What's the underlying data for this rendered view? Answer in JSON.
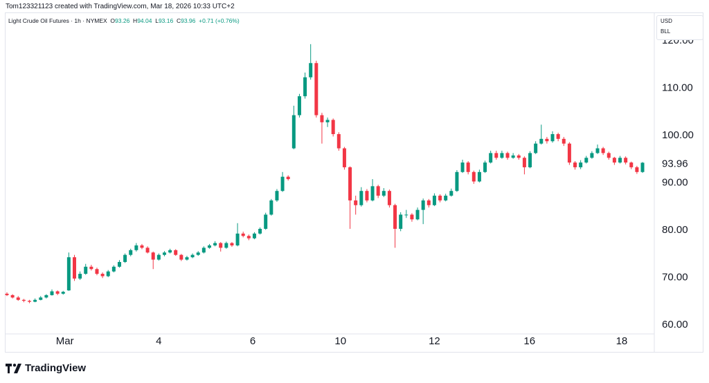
{
  "header": {
    "credit": "Tom123321123 created with TradingView.com, Mar 18, 2026 10:33 UTC+2"
  },
  "legend": {
    "symbol": "Light Crude Oil Futures · 1h · NYMEX",
    "o_label": "O",
    "o": "93.26",
    "h_label": "H",
    "h": "94.04",
    "l_label": "L",
    "l": "93.16",
    "c_label": "C",
    "c": "93.96",
    "change": "+0.71 (+0.76%)"
  },
  "unit_menu": {
    "currency": "USD",
    "unit": "BLL"
  },
  "logo": {
    "text": "TradingView"
  },
  "colors": {
    "up": "#089981",
    "down": "#f23645",
    "last_price_bg": "#089981"
  },
  "chart_data": {
    "type": "candlestick",
    "title": "Light Crude Oil Futures · 1h · NYMEX",
    "ylim": [
      57,
      122
    ],
    "y_ticks": [
      "60.00",
      "70.00",
      "80.00",
      "90.00",
      "100.00",
      "110.00",
      "120.00"
    ],
    "x_ticks": [
      {
        "label": "Mar",
        "index": 10.3
      },
      {
        "label": "4",
        "index": 27
      },
      {
        "label": "6",
        "index": 43.7
      },
      {
        "label": "10",
        "index": 59.3
      },
      {
        "label": "12",
        "index": 76
      },
      {
        "label": "16",
        "index": 92.9
      },
      {
        "label": "18",
        "index": 109.3
      }
    ],
    "last_price": "93.96",
    "grid": false,
    "candles": [
      [
        66.3,
        66.6,
        65.8,
        66
      ],
      [
        66,
        66.2,
        65.3,
        65.5
      ],
      [
        65.5,
        65.8,
        64.8,
        65
      ],
      [
        65,
        65.2,
        64.5,
        64.8
      ],
      [
        64.8,
        65,
        64.3,
        64.6
      ],
      [
        64.6,
        65.3,
        64.5,
        65
      ],
      [
        65,
        65.8,
        64.9,
        65.5
      ],
      [
        65.5,
        66.2,
        65.3,
        66
      ],
      [
        66,
        67.2,
        65.9,
        66.8
      ],
      [
        66.8,
        67,
        66,
        66.3
      ],
      [
        66.3,
        66.9,
        66.1,
        66.7
      ],
      [
        67,
        75,
        66.9,
        74
      ],
      [
        74,
        74.5,
        69,
        69.5
      ],
      [
        69.5,
        71,
        69.2,
        70.5
      ],
      [
        70.5,
        72.6,
        70.3,
        72
      ],
      [
        72,
        72.4,
        71.2,
        71.5
      ],
      [
        71.5,
        71.8,
        70.2,
        70.5
      ],
      [
        70.5,
        70.8,
        69.6,
        70
      ],
      [
        70,
        71.3,
        69.8,
        71
      ],
      [
        71,
        72.3,
        70.8,
        72
      ],
      [
        72,
        73.4,
        71.8,
        73
      ],
      [
        73,
        74.8,
        72.8,
        74.5
      ],
      [
        74.5,
        75.8,
        74.2,
        75.5
      ],
      [
        75.5,
        77,
        75.2,
        76.5
      ],
      [
        76.5,
        76.8,
        75.7,
        76
      ],
      [
        76,
        76.3,
        74.8,
        75
      ],
      [
        75,
        75.2,
        71.5,
        73.5
      ],
      [
        73.5,
        74.8,
        73.3,
        74.5
      ],
      [
        74.5,
        75.3,
        74.2,
        75
      ],
      [
        75,
        75.8,
        74.8,
        75.5
      ],
      [
        75.5,
        75.7,
        74.3,
        74.5
      ],
      [
        74.5,
        74.7,
        73.2,
        73.5
      ],
      [
        73.5,
        74.3,
        73.3,
        74
      ],
      [
        74,
        74.8,
        73.8,
        74.5
      ],
      [
        74.5,
        75.3,
        74.3,
        75
      ],
      [
        75,
        76.3,
        74.8,
        76
      ],
      [
        76,
        76.8,
        75.8,
        76.5
      ],
      [
        76.5,
        77.4,
        76.3,
        77
      ],
      [
        77,
        77.2,
        75.2,
        76
      ],
      [
        76,
        77.3,
        75.8,
        77
      ],
      [
        77,
        77.2,
        76.2,
        76.5
      ],
      [
        76.5,
        81.2,
        76.3,
        79
      ],
      [
        79,
        79.4,
        78.2,
        78.5
      ],
      [
        78.5,
        78.8,
        77.6,
        78
      ],
      [
        78,
        79.3,
        77.8,
        79
      ],
      [
        79,
        80.3,
        78.8,
        80
      ],
      [
        80,
        83.4,
        79.8,
        83
      ],
      [
        83,
        86.3,
        82.8,
        86
      ],
      [
        86,
        88.4,
        85.7,
        88
      ],
      [
        88,
        92,
        87.8,
        91
      ],
      [
        91,
        91.3,
        90.2,
        90.5
      ],
      [
        97,
        106,
        96.8,
        104
      ],
      [
        104,
        108.5,
        103.5,
        108
      ],
      [
        108,
        113,
        107.5,
        112
      ],
      [
        112,
        119,
        111.5,
        115
      ],
      [
        115,
        115.5,
        103.5,
        104
      ],
      [
        104,
        104.5,
        98,
        102.5
      ],
      [
        102.5,
        103.5,
        101.5,
        103
      ],
      [
        103,
        103.3,
        99.5,
        100
      ],
      [
        100,
        100.4,
        96.5,
        97
      ],
      [
        97,
        97.3,
        92.5,
        93
      ],
      [
        93,
        93.2,
        80,
        86
      ],
      [
        86,
        87,
        83,
        85
      ],
      [
        85,
        88.8,
        84.7,
        88
      ],
      [
        88,
        88.4,
        85.6,
        86
      ],
      [
        86,
        90.5,
        85.8,
        89
      ],
      [
        89,
        89.3,
        86.5,
        87
      ],
      [
        87,
        88.6,
        86.7,
        88
      ],
      [
        88,
        88.3,
        84.5,
        85
      ],
      [
        85,
        85.3,
        76,
        80
      ],
      [
        80,
        83.5,
        79.5,
        83
      ],
      [
        83,
        84,
        82.3,
        83
      ],
      [
        83,
        83.3,
        81.5,
        82
      ],
      [
        82,
        84.5,
        81.8,
        84
      ],
      [
        84,
        86.4,
        81,
        86
      ],
      [
        86,
        86.3,
        84.5,
        85
      ],
      [
        85,
        87.5,
        84.8,
        87
      ],
      [
        87,
        87.3,
        85.6,
        86
      ],
      [
        86,
        87.4,
        85.8,
        87
      ],
      [
        87,
        88.5,
        86.8,
        88
      ],
      [
        88,
        92.4,
        87.8,
        92
      ],
      [
        92,
        94.6,
        91.8,
        94
      ],
      [
        94,
        94.3,
        91.5,
        92
      ],
      [
        92,
        92.3,
        89.5,
        90
      ],
      [
        90,
        92.5,
        89.8,
        92
      ],
      [
        92,
        94.4,
        91.8,
        94
      ],
      [
        94,
        96.5,
        93.8,
        96
      ],
      [
        96,
        96.5,
        94.6,
        95
      ],
      [
        95,
        96.5,
        94.8,
        96
      ],
      [
        96,
        96.3,
        94.6,
        95
      ],
      [
        95,
        96,
        94.8,
        95.5
      ],
      [
        95.5,
        95.8,
        94.6,
        95
      ],
      [
        95,
        95.3,
        91.5,
        93
      ],
      [
        93,
        96.4,
        92.8,
        96
      ],
      [
        96,
        98.5,
        95.8,
        98
      ],
      [
        98,
        102,
        97.8,
        99
      ],
      [
        99,
        99.4,
        98,
        98.5
      ],
      [
        98.5,
        100.6,
        98.2,
        100
      ],
      [
        100,
        100.3,
        98.5,
        99
      ],
      [
        99,
        99.4,
        97.5,
        98
      ],
      [
        98,
        98.3,
        93.5,
        94
      ],
      [
        94,
        94.3,
        92.5,
        93
      ],
      [
        93,
        94.5,
        92.6,
        94
      ],
      [
        94,
        95.4,
        93.8,
        95
      ],
      [
        95,
        96.4,
        94.8,
        96
      ],
      [
        96,
        97.8,
        95.8,
        97
      ],
      [
        97,
        97.3,
        95.6,
        96
      ],
      [
        96,
        96.3,
        94.6,
        95
      ],
      [
        95,
        95.2,
        93.5,
        94
      ],
      [
        94,
        95.4,
        93.8,
        95
      ],
      [
        95,
        95.3,
        93.6,
        94
      ],
      [
        94,
        94.2,
        92.6,
        93
      ],
      [
        93,
        93.3,
        91.6,
        92
      ],
      [
        92,
        94.1,
        91.8,
        93.96
      ]
    ]
  }
}
